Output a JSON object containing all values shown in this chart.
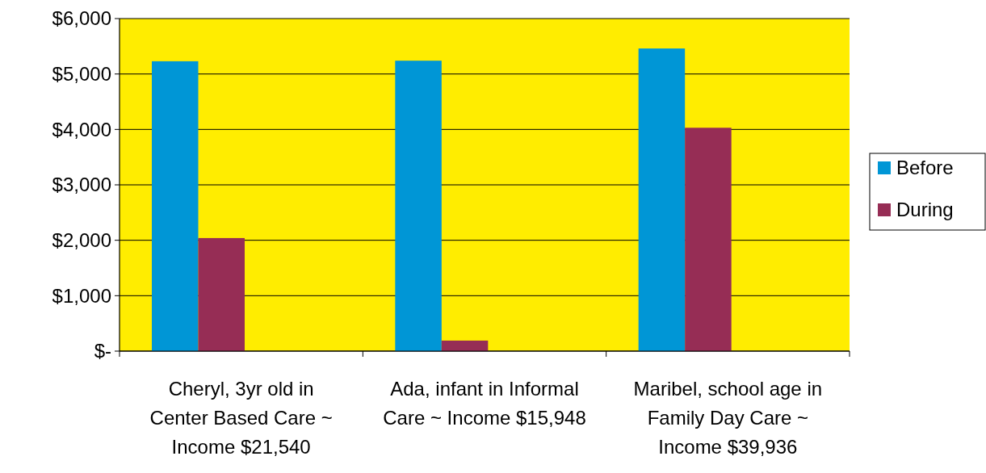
{
  "chart_data": {
    "type": "bar",
    "categories": [
      "Cheryl, 3yr old in Center Based Care ~ Income $21,540",
      "Ada, infant in Informal Care ~ Income $15,948",
      "Maribel, school age in Family Day Care ~ Income $39,936"
    ],
    "series": [
      {
        "name": "Before",
        "color": "#0096d6",
        "values": [
          5230,
          5240,
          5460
        ]
      },
      {
        "name": "During",
        "color": "#962d55",
        "values": [
          2040,
          190,
          4030
        ]
      }
    ],
    "ylim": [
      0,
      6000
    ],
    "yticks": [
      {
        "value": 0,
        "label": "$-"
      },
      {
        "value": 1000,
        "label": "$1,000"
      },
      {
        "value": 2000,
        "label": "$2,000"
      },
      {
        "value": 3000,
        "label": "$3,000"
      },
      {
        "value": 4000,
        "label": "$4,000"
      },
      {
        "value": 5000,
        "label": "$5,000"
      },
      {
        "value": 6000,
        "label": "$6,000"
      }
    ],
    "grid": "y",
    "legend": "right"
  }
}
